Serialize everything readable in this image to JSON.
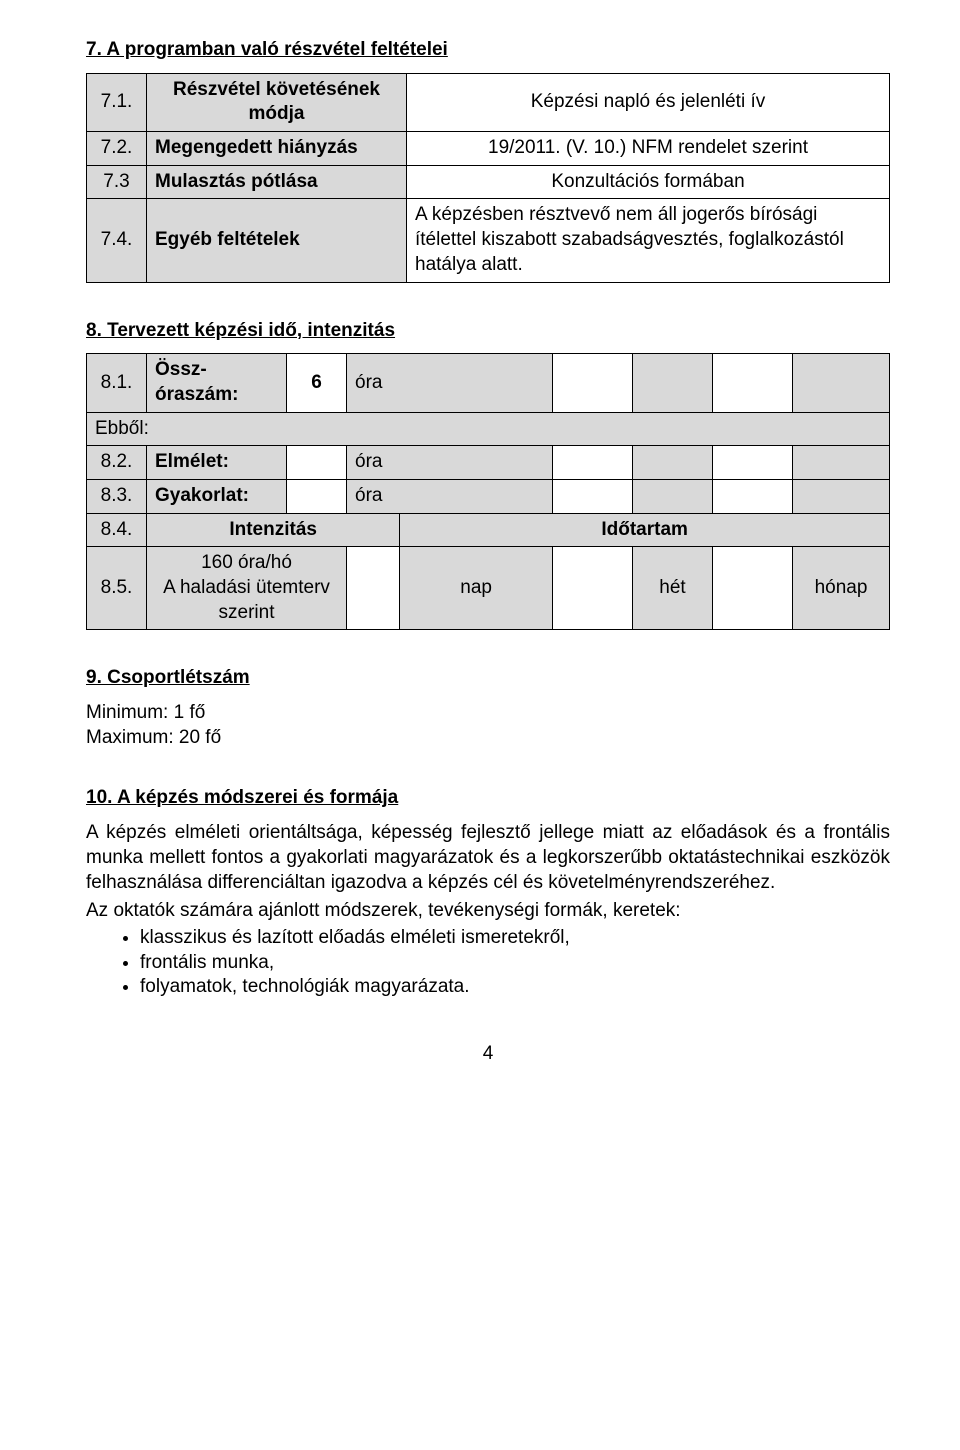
{
  "s7": {
    "heading": "7. A programban való részvétel feltételei",
    "rows": [
      {
        "num": "7.1.",
        "label": "Részvétel követésének módja",
        "value": "Képzési napló és jelenléti ív"
      },
      {
        "num": "7.2.",
        "label": "Megengedett hiányzás",
        "value": "19/2011. (V. 10.) NFM rendelet szerint"
      },
      {
        "num": "7.3",
        "label": "Mulasztás pótlása",
        "value": "Konzultációs formában"
      },
      {
        "num": "7.4.",
        "label": "Egyéb feltételek",
        "value": "A képzésben résztvevő nem áll jogerős bírósági ítélettel kiszabott szabadságvesztés, foglalkozástól hatálya alatt."
      }
    ]
  },
  "s8": {
    "heading": "8. Tervezett képzési idő, intenzitás",
    "r1": {
      "num": "8.1.",
      "label": "Össz-óraszám:",
      "val": "6",
      "unit": "óra"
    },
    "ebbol": "Ebből:",
    "r2": {
      "num": "8.2.",
      "label": "Elmélet:",
      "unit": "óra"
    },
    "r3": {
      "num": "8.3.",
      "label": "Gyakorlat:",
      "unit": "óra"
    },
    "r4": {
      "num": "8.4.",
      "label": "Intenzitás",
      "label2": "Időtartam"
    },
    "r5": {
      "num": "8.5.",
      "label": "160 óra/hó\nA haladási ütemterv szerint",
      "u1": "nap",
      "u2": "hét",
      "u3": "hónap"
    }
  },
  "s9": {
    "heading": "9. Csoportlétszám",
    "min": "Minimum: 1 fő",
    "max": "Maximum: 20 fő"
  },
  "s10": {
    "heading": "10.   A képzés módszerei és formája",
    "para1": "A képzés elméleti orientáltsága, képesség fejlesztő jellege miatt az előadások és a frontális munka mellett fontos a gyakorlati magyarázatok és a legkorszerűbb oktatástechnikai eszközök felhasználása differenciáltan igazodva a képzés cél és követelményrendszeréhez.",
    "para2": "Az oktatók számára ajánlott módszerek, tevékenységi formák, keretek:",
    "bullets": [
      "klasszikus és lazított előadás elméleti ismeretekről,",
      "frontális munka,",
      "folyamatok, technológiák magyarázata."
    ]
  },
  "pageNum": "4"
}
